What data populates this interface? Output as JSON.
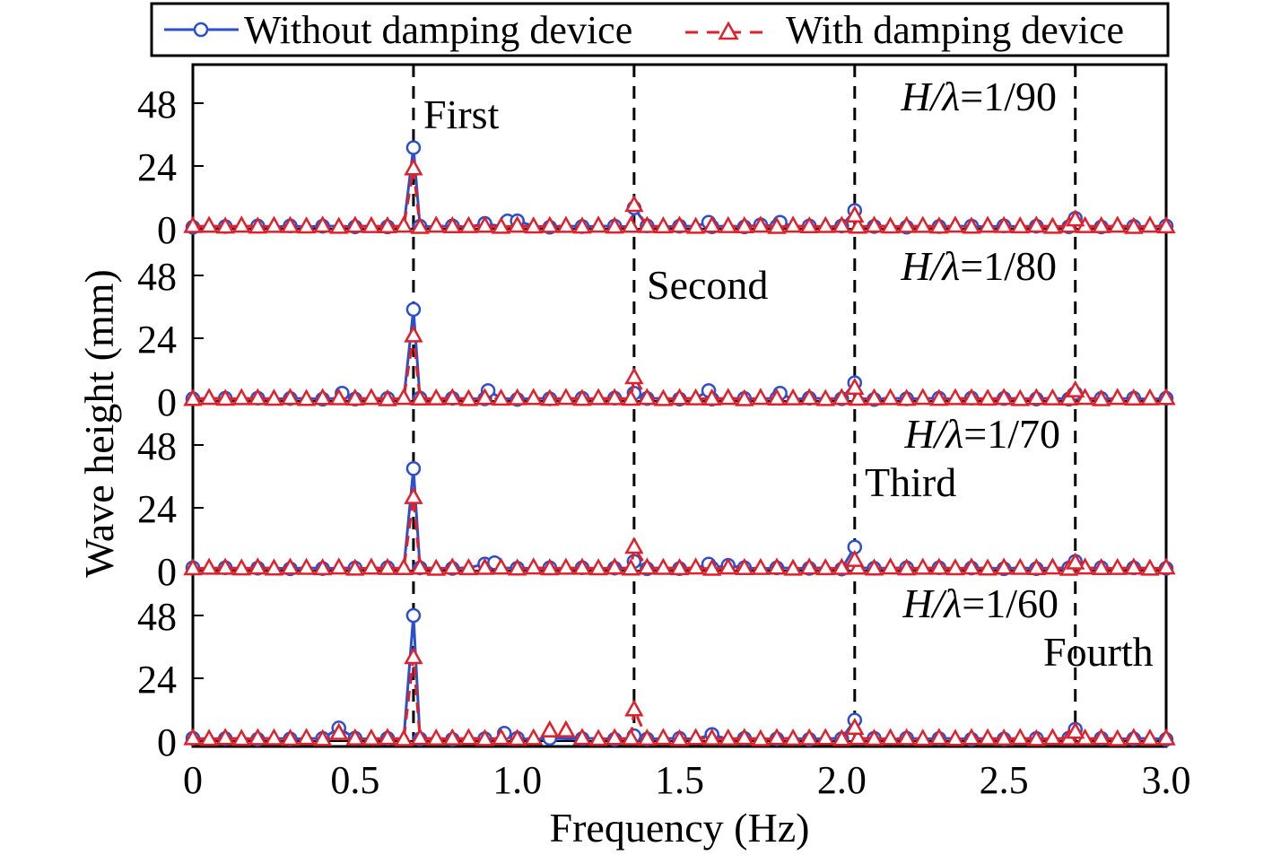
{
  "chart_data": {
    "type": "line",
    "xlabel": "Frequency (Hz)",
    "ylabel": "Wave height (mm)",
    "xlim": [
      0,
      3.0
    ],
    "ylim": [
      0,
      58
    ],
    "xticks": [
      0,
      0.5,
      1.0,
      1.5,
      2.0,
      2.5,
      3.0
    ],
    "xtick_labels": [
      "0",
      "0.5",
      "1.0",
      "1.5",
      "2.0",
      "2.5",
      "3.0"
    ],
    "yticks": [
      0,
      24,
      48
    ],
    "ytick_labels": [
      "0",
      "24",
      "48"
    ],
    "legend": {
      "position": "top",
      "entries": [
        "Without damping device",
        "With damping device"
      ]
    },
    "series_styles": [
      {
        "name": "Without damping device",
        "color": "#2a4fd0",
        "marker": "circle",
        "line": "solid"
      },
      {
        "name": "With damping device",
        "color": "#e0202a",
        "marker": "triangle",
        "line": "dashed"
      }
    ],
    "reference_lines": {
      "x": [
        0.68,
        1.36,
        2.04,
        2.72
      ],
      "labels": [
        "First",
        "Second",
        "Third",
        "Fourth"
      ]
    },
    "panels": [
      {
        "label_pre": "H/λ",
        "label_val": "=1/90",
        "order_label": "First",
        "series": [
          {
            "name": "Without damping device",
            "peaks": [
              [
                0.68,
                31
              ],
              [
                0.9,
                2
              ],
              [
                0.97,
                3
              ],
              [
                1.0,
                3
              ],
              [
                1.36,
                8
              ],
              [
                1.59,
                2.5
              ],
              [
                1.75,
                1.5
              ],
              [
                1.81,
                2.5
              ],
              [
                2.04,
                7
              ],
              [
                2.72,
                4
              ]
            ]
          },
          {
            "name": "With damping device",
            "peaks": [
              [
                0.68,
                23
              ],
              [
                1.36,
                9
              ],
              [
                2.04,
                5
              ],
              [
                2.72,
                3.5
              ]
            ]
          }
        ]
      },
      {
        "label_pre": "H/λ",
        "label_val": "=1/80",
        "order_label": "Second",
        "series": [
          {
            "name": "Without damping device",
            "peaks": [
              [
                0.46,
                3
              ],
              [
                0.68,
                35
              ],
              [
                0.91,
                4
              ],
              [
                1.36,
                3
              ],
              [
                1.59,
                4
              ],
              [
                1.81,
                3
              ],
              [
                2.04,
                7
              ],
              [
                2.72,
                3
              ]
            ]
          },
          {
            "name": "With damping device",
            "peaks": [
              [
                0.68,
                25
              ],
              [
                1.36,
                9
              ],
              [
                2.04,
                5
              ],
              [
                2.72,
                4
              ]
            ]
          }
        ]
      },
      {
        "label_pre": "H/λ",
        "label_val": "=1/70",
        "order_label": "Third",
        "series": [
          {
            "name": "Without damping device",
            "peaks": [
              [
                0.68,
                39
              ],
              [
                0.9,
                2.5
              ],
              [
                0.93,
                3
              ],
              [
                1.36,
                3.5
              ],
              [
                1.59,
                2.5
              ],
              [
                1.65,
                2
              ],
              [
                2.04,
                9
              ],
              [
                2.72,
                3.5
              ]
            ]
          },
          {
            "name": "With damping device",
            "peaks": [
              [
                0.68,
                28
              ],
              [
                1.36,
                9
              ],
              [
                2.04,
                4
              ],
              [
                2.72,
                3
              ]
            ]
          }
        ]
      },
      {
        "label_pre": "H/λ",
        "label_val": "=1/60",
        "order_label": "Fourth",
        "series": [
          {
            "name": "Without damping device",
            "peaks": [
              [
                0.45,
                5
              ],
              [
                0.68,
                48
              ],
              [
                0.96,
                3
              ],
              [
                1.36,
                2
              ],
              [
                1.6,
                2.5
              ],
              [
                2.04,
                8
              ],
              [
                2.72,
                4.5
              ]
            ]
          },
          {
            "name": "With damping device",
            "peaks": [
              [
                0.45,
                3
              ],
              [
                0.68,
                32
              ],
              [
                1.1,
                4
              ],
              [
                1.15,
                4
              ],
              [
                1.36,
                12
              ],
              [
                2.04,
                5
              ],
              [
                2.72,
                3.5
              ]
            ]
          }
        ]
      }
    ]
  }
}
